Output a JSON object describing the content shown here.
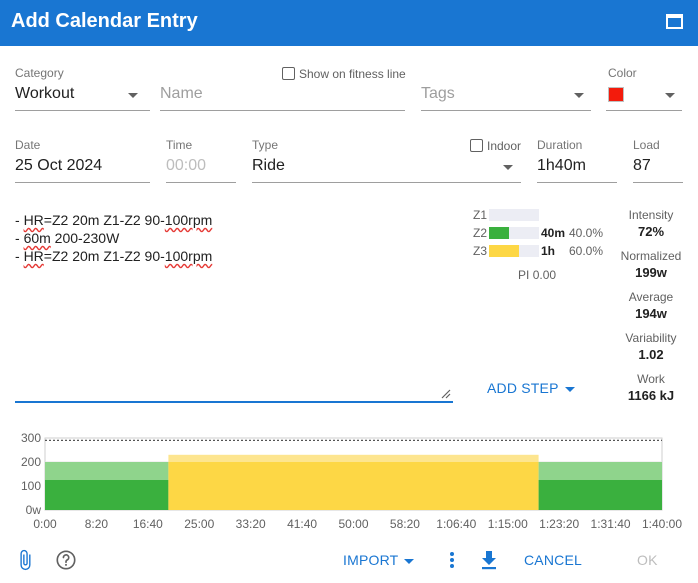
{
  "dialog": {
    "title": "Add Calendar Entry",
    "maximize_icon": "maximize-icon"
  },
  "category": {
    "label": "Category",
    "value": "Workout"
  },
  "name": {
    "placeholder": "Name"
  },
  "show_on_fitness_line": {
    "label": "Show on fitness line",
    "checked": false
  },
  "tags": {
    "placeholder": "Tags"
  },
  "color": {
    "label": "Color",
    "value": "#f31b0c"
  },
  "date": {
    "label": "Date",
    "value": "25 Oct 2024"
  },
  "time": {
    "label": "Time",
    "placeholder": "00:00"
  },
  "type": {
    "label": "Type",
    "value": "Ride"
  },
  "indoor": {
    "label": "Indoor",
    "checked": false
  },
  "duration": {
    "label": "Duration",
    "value": "1h40m"
  },
  "load": {
    "label": "Load",
    "value": "87"
  },
  "description": {
    "lines": [
      {
        "parts": [
          {
            "text": "- ",
            "sq": false
          },
          {
            "text": "HR",
            "sq": true
          },
          {
            "text": "=Z2 20m Z1-Z2 90-",
            "sq": false
          },
          {
            "text": "100rpm",
            "sq": true
          }
        ]
      },
      {
        "parts": [
          {
            "text": "- ",
            "sq": false
          },
          {
            "text": "60m",
            "sq": true
          },
          {
            "text": " 200-230W",
            "sq": false
          }
        ]
      },
      {
        "parts": [
          {
            "text": "- ",
            "sq": false
          },
          {
            "text": "HR",
            "sq": true
          },
          {
            "text": "=Z2 20m Z1-Z2 90-",
            "sq": false
          },
          {
            "text": "100rpm",
            "sq": true
          }
        ]
      }
    ]
  },
  "zones": [
    {
      "name": "Z1",
      "fraction": 0,
      "color": "#ecedf4",
      "time": "",
      "percent": ""
    },
    {
      "name": "Z2",
      "fraction": 0.4,
      "color": "#3ab03e",
      "time": "40m",
      "percent": "40.0%"
    },
    {
      "name": "Z3",
      "fraction": 0.6,
      "color": "#fdd745",
      "time": "1h",
      "percent": "60.0%"
    }
  ],
  "pi": {
    "label": "PI",
    "value": "0.00"
  },
  "stats": [
    {
      "label": "Intensity",
      "value": "72%"
    },
    {
      "label": "Normalized",
      "value": "199w"
    },
    {
      "label": "Average",
      "value": "194w"
    },
    {
      "label": "Variability",
      "value": "1.02"
    },
    {
      "label": "Work",
      "value": "1166 kJ"
    }
  ],
  "add_step_label": "ADD STEP",
  "chart_data": {
    "type": "area",
    "y_ticks": [
      "300",
      "200",
      "100",
      "0w"
    ],
    "x_ticks": [
      "0:00",
      "8:20",
      "16:40",
      "25:00",
      "33:20",
      "41:40",
      "50:00",
      "58:20",
      "1:06:40",
      "1:15:00",
      "1:23:20",
      "1:31:40",
      "1:40:00"
    ],
    "ylim": [
      0,
      300
    ],
    "xlim_minutes": [
      0,
      100
    ],
    "reference_line_y": 290,
    "steps": [
      {
        "start": 0,
        "end": 20,
        "low": 125,
        "high": 200,
        "zone": "Z2"
      },
      {
        "start": 20,
        "end": 80,
        "low": 200,
        "high": 230,
        "zone": "Z3"
      },
      {
        "start": 80,
        "end": 100,
        "low": 125,
        "high": 200,
        "zone": "Z2"
      }
    ],
    "colors": {
      "Z2_solid": "#3ab03e",
      "Z2_light": "#8fd48c",
      "Z3_solid": "#fdd745",
      "Z3_light": "#fde58f"
    }
  },
  "footer": {
    "attach_icon": "paperclip-icon",
    "help_icon": "help-icon",
    "import_label": "IMPORT",
    "more_icon": "more-vertical-icon",
    "download_icon": "download-icon",
    "cancel_label": "CANCEL",
    "ok_label": "OK"
  }
}
